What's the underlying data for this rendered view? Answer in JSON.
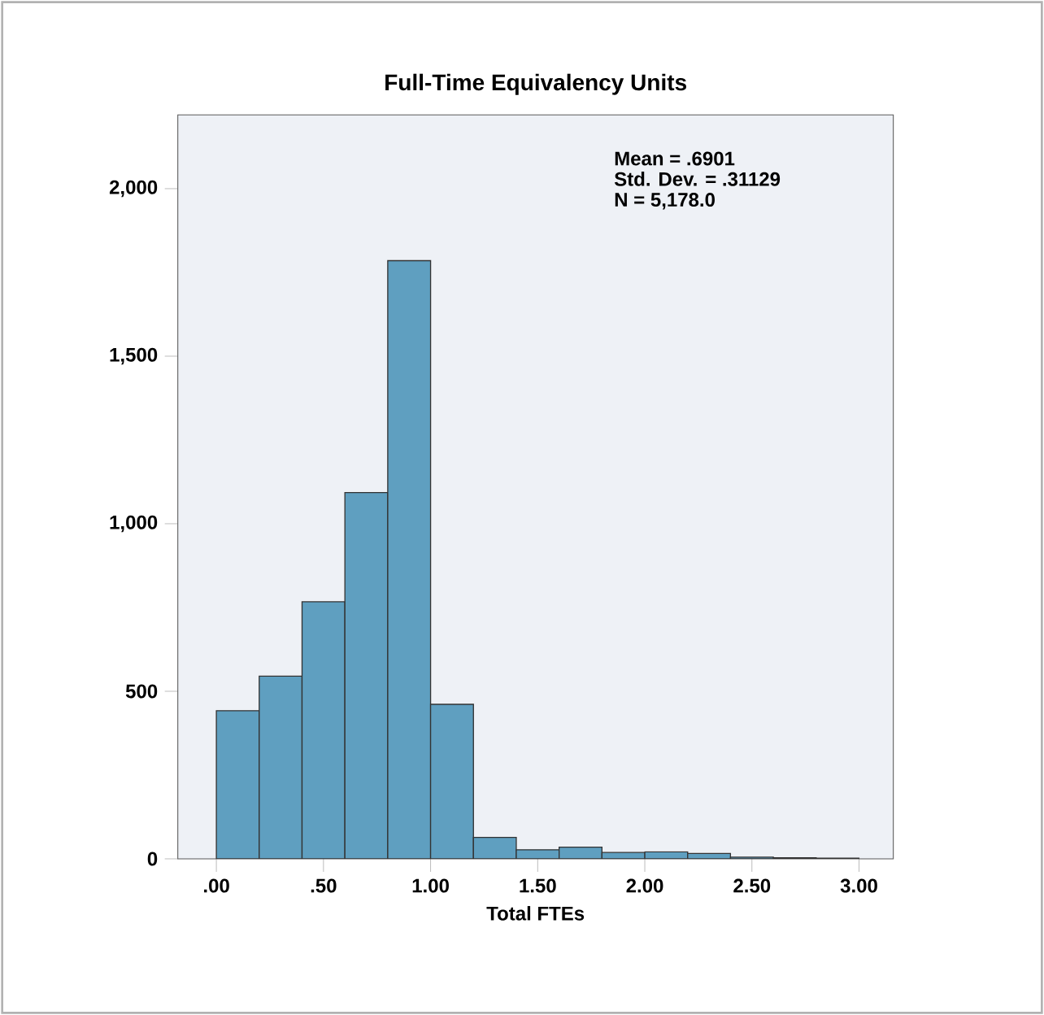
{
  "chart_data": {
    "type": "histogram",
    "title": "Full-Time Equivalency Units",
    "xlabel": "Total FTEs",
    "bins": [
      0,
      0.2,
      0.4,
      0.6,
      0.8,
      1.0,
      1.2,
      1.4,
      1.6,
      1.8,
      2.0,
      2.2,
      2.4,
      2.6,
      2.8,
      3.0
    ],
    "values": [
      442,
      545,
      767,
      1093,
      1785,
      461,
      64,
      27,
      35,
      19,
      21,
      16,
      5,
      3,
      2
    ],
    "color": "#5f9fc0",
    "xlim": [
      -0.18,
      3.16
    ],
    "ylim": [
      0,
      2220
    ],
    "xticks": [
      {
        "value": 0,
        "label": ".00"
      },
      {
        "value": 0.5,
        "label": ".50"
      },
      {
        "value": 1,
        "label": "1.00"
      },
      {
        "value": 1.5,
        "label": "1.50"
      },
      {
        "value": 2,
        "label": "2.00"
      },
      {
        "value": 2.5,
        "label": "2.50"
      },
      {
        "value": 3,
        "label": "3.00"
      }
    ],
    "yticks": [
      0,
      500,
      {
        "value": 1000,
        "label": "1,000"
      },
      {
        "value": 1500,
        "label": "1,500"
      },
      {
        "value": 2000,
        "label": "2,000"
      }
    ],
    "annotations": [
      "Mean = .6901",
      "Std. Dev. = .31129",
      "N = 5,178.0"
    ],
    "grid": false
  }
}
